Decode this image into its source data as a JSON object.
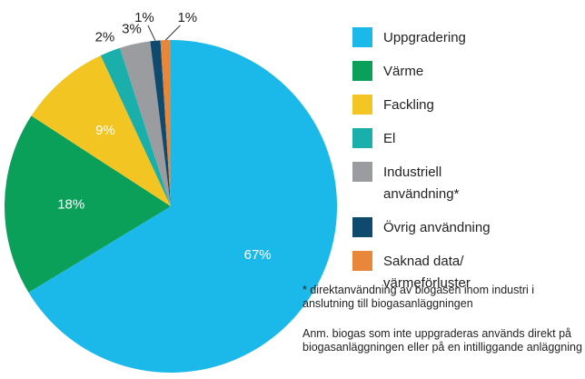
{
  "chart_data": {
    "type": "pie",
    "categories": [
      "Uppgradering",
      "Värme",
      "Fackling",
      "El",
      "Industriell användning*",
      "Övrig användning",
      "Saknad data/ värmeförluster"
    ],
    "values": [
      67,
      18,
      9,
      2,
      3,
      1,
      1
    ],
    "value_labels": [
      "67%",
      "18%",
      "9%",
      "2%",
      "3%",
      "1%",
      "1%"
    ],
    "colors": [
      "#1bb8ea",
      "#0aa05a",
      "#f2c523",
      "#1aafab",
      "#9a9c9f",
      "#0d4a6e",
      "#e8873a"
    ],
    "annotations": [
      "* direktanvändning av biogasen inom industri i anslutning till biogasanläggningen",
      "Anm. biogas som inte uppgraderas används direkt på biogasanläggningen eller på en intilliggande anläggning"
    ]
  }
}
